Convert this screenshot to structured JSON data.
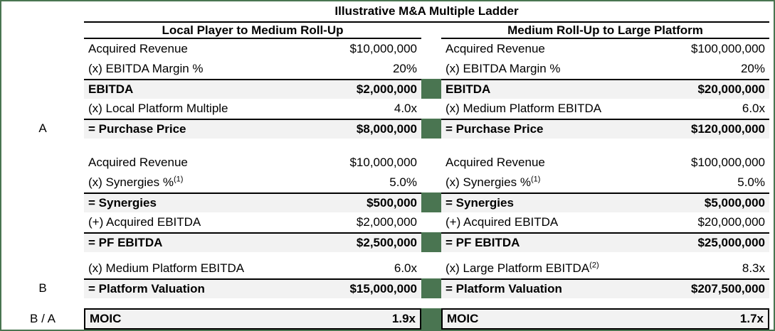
{
  "title": "Illustrative M&A Multiple Ladder",
  "colors": {
    "accent_green": "#4a7551",
    "row_shade": "#f2f2f2",
    "line_black": "#000000"
  },
  "columns": [
    {
      "header": "Local Player to Medium Roll-Up"
    },
    {
      "header": "Medium Roll-Up to Large Platform"
    }
  ],
  "rows": [
    {
      "type": "data",
      "letter": "",
      "left": {
        "label": "Acquired Revenue",
        "value": "$10,000,000"
      },
      "right": {
        "label": "Acquired Revenue",
        "value": "$100,000,000"
      }
    },
    {
      "type": "data",
      "letter": "",
      "left": {
        "label": "(x) EBITDA Margin %",
        "value": "20%"
      },
      "right": {
        "label": "(x) EBITDA Margin %",
        "value": "20%"
      }
    },
    {
      "type": "subtotal",
      "letter": "",
      "left": {
        "label": "EBITDA",
        "value": "$2,000,000"
      },
      "right": {
        "label": "EBITDA",
        "value": "$20,000,000"
      }
    },
    {
      "type": "data",
      "letter": "",
      "left": {
        "label": "(x) Local Platform Multiple",
        "value": "4.0x"
      },
      "right": {
        "label": "(x) Medium Platform EBITDA",
        "value": "6.0x"
      }
    },
    {
      "type": "subtotal",
      "letter": "A",
      "left": {
        "label": "= Purchase Price",
        "value": "$8,000,000"
      },
      "right": {
        "label": "= Purchase Price",
        "value": "$120,000,000"
      }
    },
    {
      "type": "spacer",
      "size": "lg"
    },
    {
      "type": "data",
      "letter": "",
      "left": {
        "label": "Acquired Revenue",
        "value": "$10,000,000"
      },
      "right": {
        "label": "Acquired Revenue",
        "value": "$100,000,000"
      }
    },
    {
      "type": "data",
      "letter": "",
      "left": {
        "label": "(x) Synergies %",
        "sup": "(1)",
        "value": "5.0%"
      },
      "right": {
        "label": "(x) Synergies %",
        "sup": "(1)",
        "value": "5.0%"
      }
    },
    {
      "type": "subtotal",
      "letter": "",
      "left": {
        "label": "= Synergies",
        "value": "$500,000"
      },
      "right": {
        "label": "= Synergies",
        "value": "$5,000,000"
      }
    },
    {
      "type": "data",
      "letter": "",
      "left": {
        "label": "(+) Acquired EBITDA",
        "value": "$2,000,000"
      },
      "right": {
        "label": "(+) Acquired EBITDA",
        "value": "$20,000,000"
      }
    },
    {
      "type": "subtotal",
      "letter": "",
      "left": {
        "label": "= PF EBITDA",
        "value": "$2,500,000"
      },
      "right": {
        "label": "= PF EBITDA",
        "value": "$25,000,000"
      }
    },
    {
      "type": "spacer",
      "size": "sm"
    },
    {
      "type": "data",
      "letter": "",
      "left": {
        "label": "(x) Medium Platform EBITDA",
        "value": "6.0x"
      },
      "right": {
        "label": "(x) Large Platform EBITDA",
        "sup": "(2)",
        "value": "8.3x"
      }
    },
    {
      "type": "subtotal",
      "letter": "B",
      "left": {
        "label": "= Platform Valuation",
        "value": "$15,000,000"
      },
      "right": {
        "label": "= Platform Valuation",
        "value": "$207,500,000"
      }
    },
    {
      "type": "spacer",
      "size": "md"
    },
    {
      "type": "moic",
      "letter": "B / A",
      "left": {
        "label": "MOIC",
        "value": "1.9x"
      },
      "right": {
        "label": "MOIC",
        "value": "1.7x"
      }
    }
  ]
}
